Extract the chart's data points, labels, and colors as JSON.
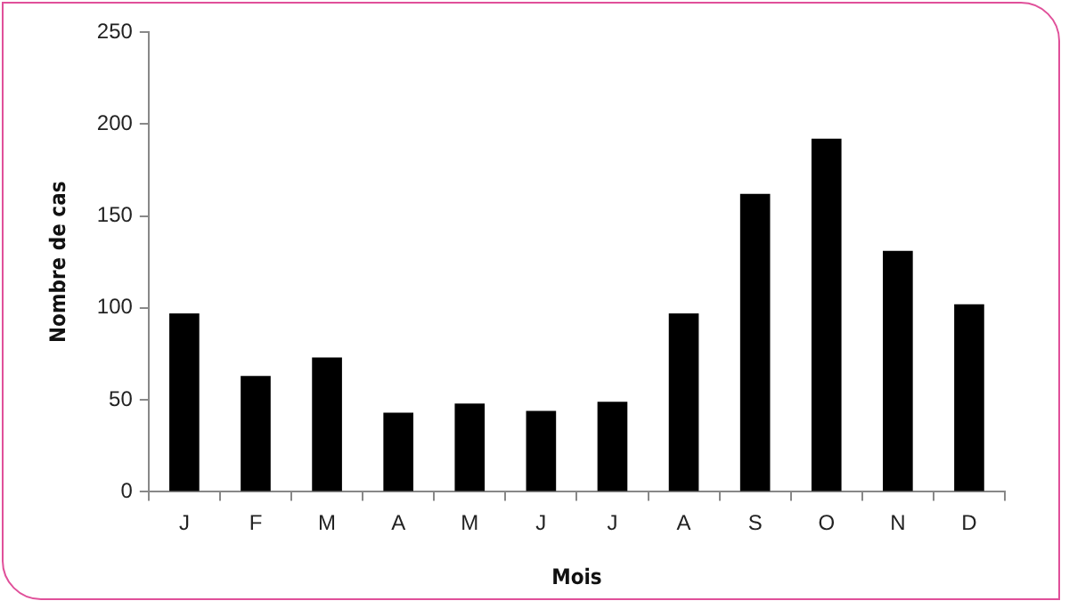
{
  "chart_data": {
    "type": "bar",
    "xlabel": "Mois",
    "ylabel": "Nombre de cas",
    "categories": [
      "J",
      "F",
      "M",
      "A",
      "M",
      "J",
      "J",
      "A",
      "S",
      "O",
      "N",
      "D"
    ],
    "values": [
      97,
      63,
      73,
      43,
      48,
      44,
      49,
      97,
      162,
      192,
      131,
      102
    ],
    "color": "#000000",
    "ylim": [
      0,
      250
    ],
    "yticks": [
      0,
      50,
      100,
      150,
      200,
      250
    ],
    "grid": false,
    "legend": false
  }
}
